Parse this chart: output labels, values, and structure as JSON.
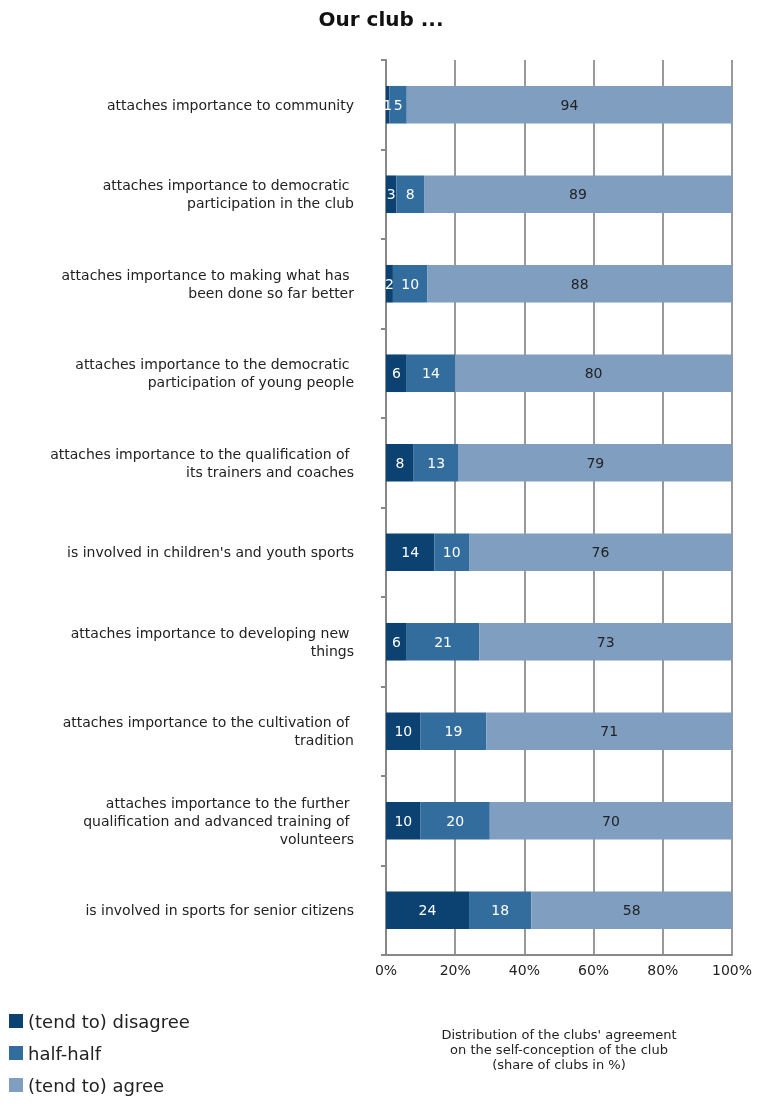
{
  "chart_data": {
    "type": "bar",
    "orientation": "horizontal",
    "stacked": true,
    "title": "Our club ...",
    "xlabel": "Distribution of the clubs' agreement\non the self-conception of the club\n(share of clubs in %)",
    "categories": [
      "attaches importance to community",
      "attaches importance to democratic participation in the club",
      "attaches importance to making what has been done so far better",
      "attaches importance to the democratic participation of young people",
      "attaches importance to the qualification of its trainers and coaches",
      "is involved in children's and youth sports",
      "attaches importance to developing new things",
      "attaches importance to the cultivation of tradition",
      "attaches importance to the further qualification and advanced training of volunteers",
      "is involved in sports for senior citizens"
    ],
    "series": [
      {
        "name": "(tend to) disagree",
        "color": "#0b4272",
        "values": [
          1,
          3,
          2,
          6,
          8,
          14,
          6,
          10,
          10,
          24
        ]
      },
      {
        "name": "half-half",
        "color": "#336d9e",
        "values": [
          5,
          8,
          10,
          14,
          13,
          10,
          21,
          19,
          20,
          18
        ]
      },
      {
        "name": "(tend to) agree",
        "color": "#7f9ec0",
        "values": [
          94,
          89,
          88,
          80,
          79,
          76,
          73,
          71,
          70,
          58
        ]
      }
    ],
    "xlim": [
      0,
      100
    ],
    "xticks": [
      {
        "value": 0,
        "label": "0%"
      },
      {
        "value": 20,
        "label": "20%"
      },
      {
        "value": 40,
        "label": "40%"
      },
      {
        "value": 60,
        "label": "60%"
      },
      {
        "value": 80,
        "label": "80%"
      },
      {
        "value": 100,
        "label": "100%"
      }
    ],
    "grid": "x",
    "legend": "bottom left",
    "data_labels": true
  }
}
